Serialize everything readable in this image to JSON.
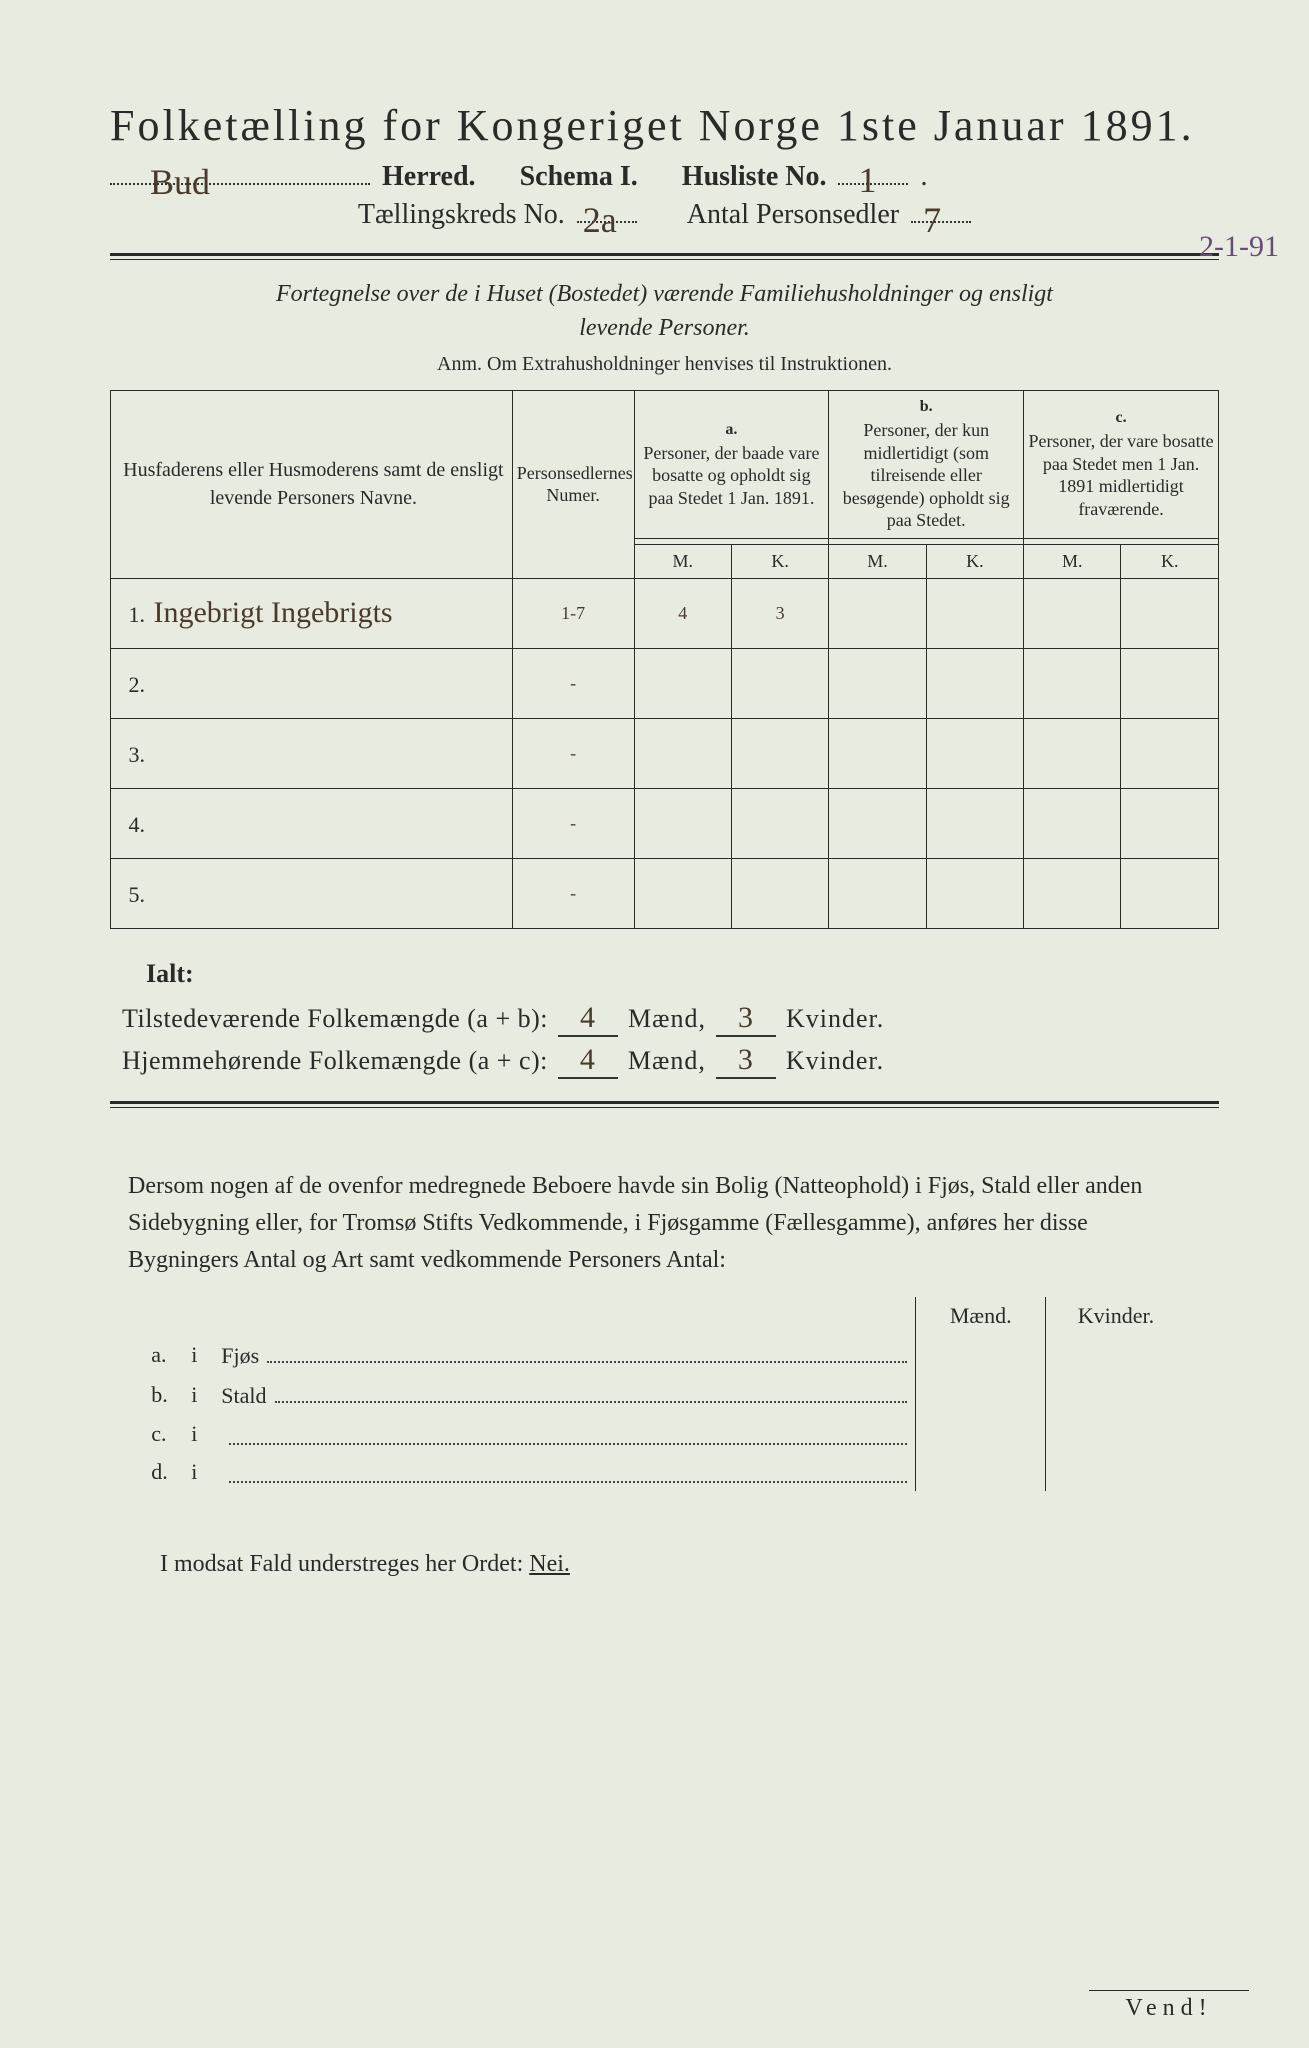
{
  "title": "Folketælling for Kongeriget Norge 1ste Januar 1891.",
  "header": {
    "herred_value": "Bud",
    "herred_label": "Herred.",
    "schema_label": "Schema I.",
    "husliste_label": "Husliste No.",
    "husliste_no": "1",
    "kreds_label": "Tællingskreds No.",
    "kreds_no": "2a",
    "personsedler_label": "Antal Personsedler",
    "personsedler_no": "7",
    "margin_date": "2-1-91"
  },
  "instructions": {
    "line1": "Fortegnelse over de i Huset (Bostedet) værende Familiehusholdninger og ensligt",
    "line2": "levende Personer.",
    "anm": "Anm. Om Extrahusholdninger henvises til Instruktionen."
  },
  "table": {
    "col_name_label": "Husfaderens eller Husmoderens samt de ensligt levende Personers Navne.",
    "col_num_label": "Personsedlernes Numer.",
    "col_a_letter": "a.",
    "col_a_label": "Personer, der baade vare bosatte og opholdt sig paa Stedet 1 Jan. 1891.",
    "col_b_letter": "b.",
    "col_b_label": "Personer, der kun midlertidigt (som tilreisende eller besøgende) opholdt sig paa Stedet.",
    "col_c_letter": "c.",
    "col_c_label": "Personer, der vare bosatte paa Stedet men 1 Jan. 1891 midlertidigt fraværende.",
    "mk_m": "M.",
    "mk_k": "K.",
    "rows": [
      {
        "n": "1.",
        "name": "Ingebrigt Ingebrigts",
        "num": "1-7",
        "a_m": "4",
        "a_k": "3",
        "b_m": "",
        "b_k": "",
        "c_m": "",
        "c_k": ""
      },
      {
        "n": "2.",
        "name": "",
        "num": "-",
        "a_m": "",
        "a_k": "",
        "b_m": "",
        "b_k": "",
        "c_m": "",
        "c_k": ""
      },
      {
        "n": "3.",
        "name": "",
        "num": "-",
        "a_m": "",
        "a_k": "",
        "b_m": "",
        "b_k": "",
        "c_m": "",
        "c_k": ""
      },
      {
        "n": "4.",
        "name": "",
        "num": "-",
        "a_m": "",
        "a_k": "",
        "b_m": "",
        "b_k": "",
        "c_m": "",
        "c_k": ""
      },
      {
        "n": "5.",
        "name": "",
        "num": "-",
        "a_m": "",
        "a_k": "",
        "b_m": "",
        "b_k": "",
        "c_m": "",
        "c_k": ""
      }
    ]
  },
  "totals": {
    "ialt": "Ialt:",
    "tilstede_label": "Tilstedeværende Folkemængde (a + b):",
    "tilstede_m": "4",
    "tilstede_k": "3",
    "hjemme_label": "Hjemmehørende Folkemængde (a + c):",
    "hjemme_m": "4",
    "hjemme_k": "3",
    "maend": "Mænd,",
    "kvinder": "Kvinder."
  },
  "side_paragraph": "Dersom nogen af de ovenfor medregnede Beboere havde sin Bolig (Natteophold) i Fjøs, Stald eller anden Sidebygning eller, for Tromsø Stifts Vedkommende, i Fjøsgamme (Fællesgamme), anføres her disse Bygningers Antal og Art samt vedkommende Personers Antal:",
  "side_table": {
    "maend": "Mænd.",
    "kvinder": "Kvinder.",
    "rows": [
      {
        "let": "a.",
        "i": "i",
        "label": "Fjøs"
      },
      {
        "let": "b.",
        "i": "i",
        "label": "Stald"
      },
      {
        "let": "c.",
        "i": "i",
        "label": ""
      },
      {
        "let": "d.",
        "i": "i",
        "label": ""
      }
    ]
  },
  "modsat": "I modsat Fald understreges her Ordet:",
  "nei": "Nei.",
  "vend": "Vend!"
}
